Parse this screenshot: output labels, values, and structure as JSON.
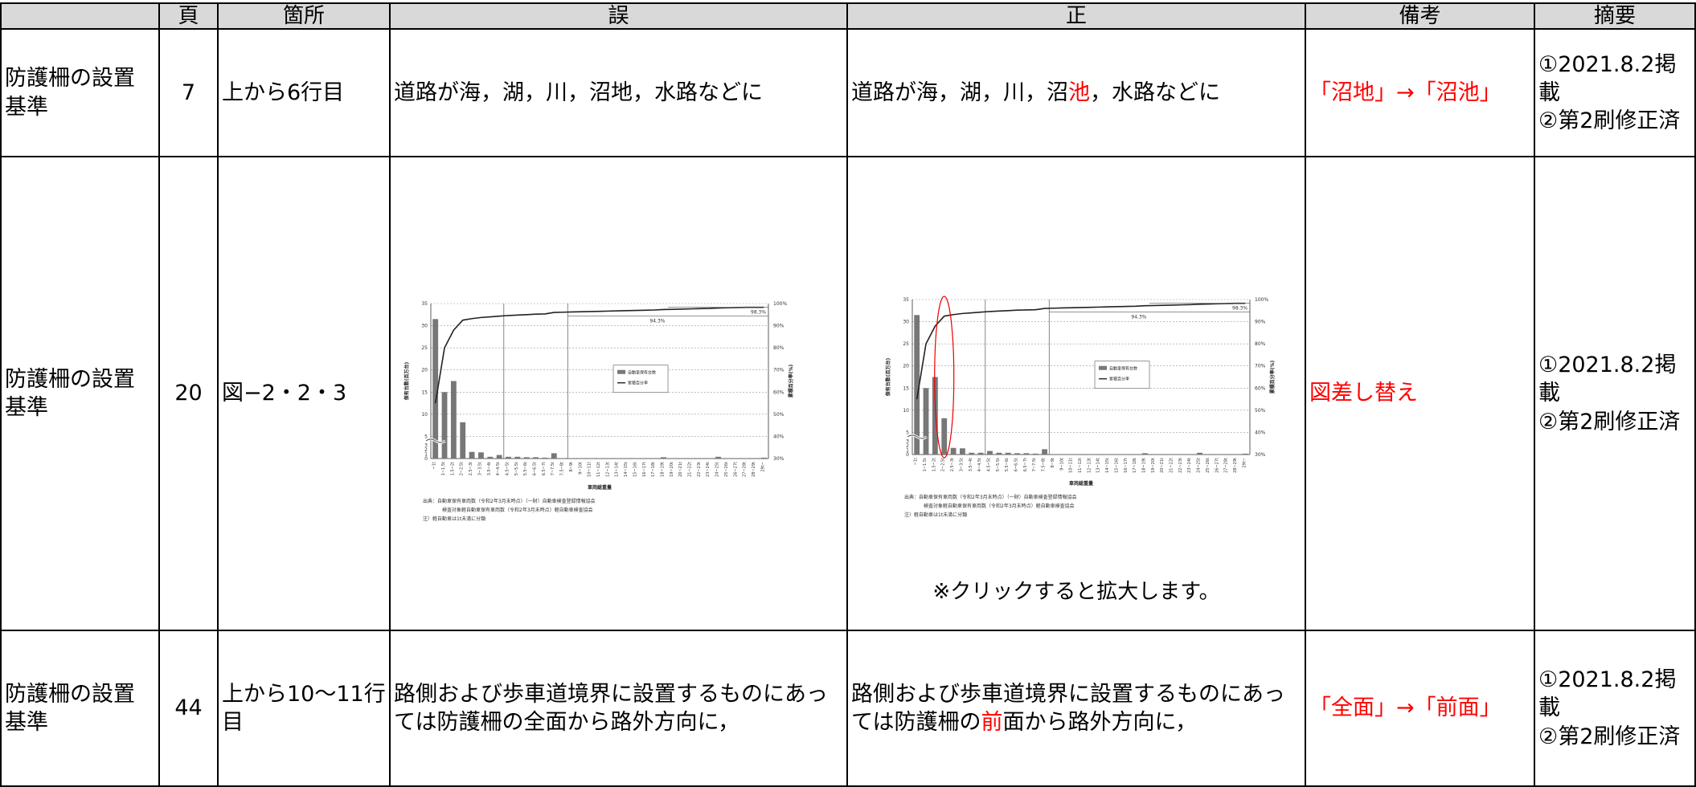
{
  "table": {
    "headers": [
      "",
      "頁",
      "箇所",
      "誤",
      "正",
      "備考",
      "摘要"
    ],
    "rows": [
      {
        "name": "防護柵の設置基準",
        "page": "7",
        "location": "上から6行目",
        "wrong": "道路が海，湖，川，沼地，水路などに",
        "correct_pre": "道路が海，湖，川，沼",
        "correct_hl": "池",
        "correct_post": "，水路などに",
        "note": "「沼地」→「沼池」",
        "summary": [
          "①2021.8.2掲載",
          "②第2刷修正済"
        ]
      },
      {
        "name": "防護柵の設置基準",
        "page": "20",
        "location": "図−2・2・3",
        "note": "図差し替え",
        "click_note": "※クリックすると拡大します。",
        "summary": [
          "①2021.8.2掲載",
          "②第2刷修正済"
        ]
      },
      {
        "name": "防護柵の設置基準",
        "page": "44",
        "location": "上から10〜11行目",
        "wrong": "路側および歩車道境界に設置するものにあっては防護柵の全面から路外方向に，",
        "correct_pre": "路側および歩車道境界に設置するものにあっては防護柵の",
        "correct_hl": "前",
        "correct_post": "面から路外方向に，",
        "note": "「全面」→「前面」",
        "summary": [
          "①2021.8.2掲載",
          "②第2刷修正済"
        ]
      }
    ]
  },
  "chart_data": [
    {
      "type": "bar",
      "title": "",
      "xlabel": "車両総重量",
      "ylabel": "保有台数(百万台)",
      "y2label": "累積百分率(%)",
      "categories": [
        "~1t",
        "1~1.5t",
        "1.5~2t",
        "2~2.5t",
        "2.5~3t",
        "3~3.5t",
        "3.5~4t",
        "4~4.5t",
        "4.5~5t",
        "5~5.5t",
        "5.5~6t",
        "6~6.5t",
        "6.5~7t",
        "7~7.5t",
        "7.5~8t",
        "8~9t",
        "9~10t",
        "10~11t",
        "11~12t",
        "12~13t",
        "13~14t",
        "14~15t",
        "15~16t",
        "16~17t",
        "17~18t",
        "18~19t",
        "19~20t",
        "20~21t",
        "21~22t",
        "22~23t",
        "23~24t",
        "24~25t",
        "25~26t",
        "26~27t",
        "27~28t",
        "28~29t",
        "29t~"
      ],
      "series": [
        {
          "name": "自動車保有台数",
          "values": [
            31.5,
            15,
            17.5,
            8.2,
            1.5,
            1.4,
            0.4,
            0.8,
            0.4,
            0.4,
            0.3,
            0.3,
            0.2,
            1.2,
            0.1,
            0.1,
            0.1,
            0.1,
            0.1,
            0.1,
            0.1,
            0.1,
            0.1,
            0.1,
            0.1,
            0.3,
            0.1,
            0.1,
            0.1,
            0.1,
            0.1,
            0.4,
            0.1,
            0.1,
            0.1,
            0.1,
            0.2
          ]
        },
        {
          "name": "累積百分率",
          "values": [
            55,
            80,
            88,
            92.5,
            93.2,
            93.7,
            94,
            94.3,
            94.6,
            94.8,
            95,
            95.2,
            95.3,
            96,
            96.1,
            96.2,
            96.3,
            96.4,
            96.5,
            96.6,
            96.7,
            96.8,
            96.9,
            97,
            97.1,
            97.3,
            97.4,
            97.5,
            97.6,
            97.7,
            97.8,
            98,
            98.1,
            98.2,
            98.3,
            98.3,
            98.3
          ]
        }
      ],
      "annotations": [
        "94.3%",
        "98.3%"
      ],
      "ylim": [
        0,
        35
      ],
      "y2lim": [
        30,
        100
      ],
      "yticks": [
        "0",
        "1",
        "2",
        "3",
        "5",
        "10",
        "15",
        "20",
        "25",
        "30",
        "35"
      ],
      "y2ticks": [
        "30%",
        "40%",
        "50%",
        "60%",
        "70%",
        "80%",
        "90%",
        "100%"
      ],
      "source_lines": [
        "出典：自動車保有車両数（令和2年3月末時点）（一財）自動車検査登録情報協会",
        "検査対象軽自動車保有車両数（令和2年3月末時点）軽自動車検査協会",
        "注）軽自動車は1t未満に分類"
      ]
    },
    {
      "type": "bar",
      "title": "",
      "xlabel": "車両総重量",
      "ylabel": "保有台数(百万台)",
      "y2label": "累積百分率(%)",
      "categories": [
        "~1t",
        "1~1.5t",
        "1.5~2t",
        "2~2.5t",
        "2.5~3t",
        "3~3.5t",
        "3.5~4t",
        "4~4.5t",
        "4.5~5t",
        "5~5.5t",
        "5.5~6t",
        "6~6.5t",
        "6.5~7t",
        "7~7.5t",
        "7.5~8t",
        "8~9t",
        "9~10t",
        "10~11t",
        "11~12t",
        "12~13t",
        "13~14t",
        "14~15t",
        "15~16t",
        "16~17t",
        "17~18t",
        "18~19t",
        "19~20t",
        "20~21t",
        "21~22t",
        "22~23t",
        "23~24t",
        "24~25t",
        "25~26t",
        "26~27t",
        "27~28t",
        "28~29t",
        "29t~"
      ],
      "series": [
        {
          "name": "自動車保有台数",
          "values": [
            31.5,
            15,
            17.5,
            8.2,
            1.5,
            1.4,
            0.4,
            0.4,
            0.8,
            0.4,
            0.4,
            0.3,
            0.3,
            0.2,
            1.2,
            0.1,
            0.1,
            0.1,
            0.1,
            0.1,
            0.1,
            0.1,
            0.1,
            0.1,
            0.1,
            0.3,
            0.1,
            0.1,
            0.1,
            0.1,
            0.1,
            0.4,
            0.1,
            0.1,
            0.1,
            0.1,
            0.2
          ]
        },
        {
          "name": "累積百分率",
          "values": [
            55,
            80,
            88,
            92.5,
            93.2,
            93.7,
            94,
            94.3,
            94.6,
            94.8,
            95,
            95.2,
            95.3,
            95.4,
            96,
            96.1,
            96.2,
            96.3,
            96.4,
            96.5,
            96.6,
            96.7,
            96.8,
            96.9,
            97,
            97.2,
            97.3,
            97.4,
            97.5,
            97.6,
            97.7,
            97.9,
            98,
            98.1,
            98.2,
            98.3,
            98.3
          ]
        }
      ],
      "annotations": [
        "94.3%",
        "98.3%"
      ],
      "ylim": [
        0,
        35
      ],
      "y2lim": [
        30,
        100
      ],
      "yticks": [
        "0",
        "1",
        "2",
        "3",
        "5",
        "10",
        "15",
        "20",
        "25",
        "30",
        "35"
      ],
      "y2ticks": [
        "30%",
        "40%",
        "50%",
        "60%",
        "70%",
        "80%",
        "90%",
        "100%"
      ],
      "source_lines": [
        "出典：自動車保有車両数（令和2年3月末時点）（一財）自動車検査登録情報協会",
        "検査対象軽自動車保有車両数（令和2年3月末時点）軽自動車検査協会",
        "注）軽自動車は1t未満に分類"
      ]
    }
  ]
}
